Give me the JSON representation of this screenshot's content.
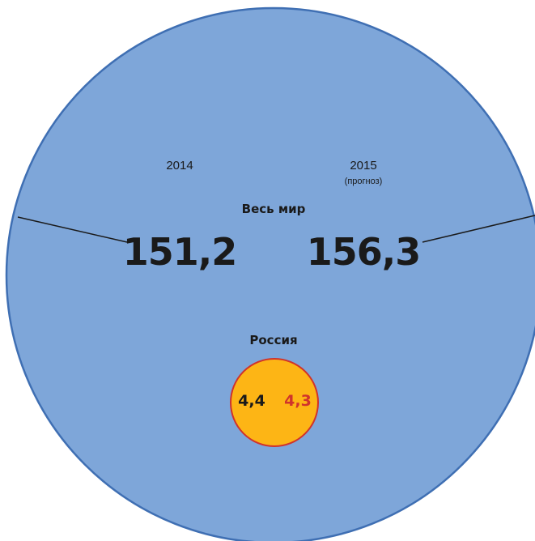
{
  "chart_data": {
    "type": "bubble",
    "years": [
      "2014",
      "2015"
    ],
    "year_notes": [
      "",
      "(прогноз)"
    ],
    "series": [
      {
        "name": "Весь мир",
        "values": [
          151.2,
          156.3
        ],
        "value_labels": [
          "151,2",
          "156,3"
        ]
      },
      {
        "name": "Россия",
        "values": [
          4.4,
          4.3
        ],
        "value_labels": [
          "4,4",
          "4,3"
        ]
      }
    ],
    "colors": {
      "world_fill": "#7ea6d9",
      "world_stroke": "#3f6fb3",
      "russia_fill": "#fdb515",
      "russia_stroke": "#d0332b",
      "text_dark": "#1a1a1a",
      "forecast_value": "#d0332b",
      "leader_line": "#1a1a1a"
    }
  }
}
